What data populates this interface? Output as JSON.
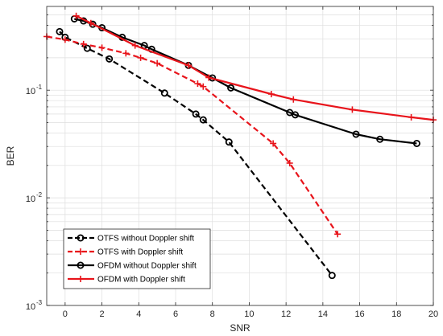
{
  "chart_data": {
    "type": "line",
    "title": "",
    "xlabel": "SNR",
    "ylabel": "BER",
    "xlim": [
      -1,
      20
    ],
    "ylim": [
      0.001,
      0.6
    ],
    "yscale": "log",
    "grid": true,
    "legend_position": "bottom-left",
    "x_ticks": [
      0,
      2,
      4,
      6,
      8,
      10,
      12,
      14,
      16,
      18,
      20
    ],
    "x_tick_labels": [
      "0",
      "2",
      "4",
      "6",
      "8",
      "10",
      "12",
      "14",
      "16",
      "18",
      "20"
    ],
    "y_ticks": [
      0.001,
      0.01,
      0.1
    ],
    "y_tick_base": "10",
    "y_tick_exponents": [
      "-3",
      "-2",
      "-1"
    ],
    "series": [
      {
        "name": "OTFS without Doppler shift",
        "color": "#000000",
        "dash": "dashed",
        "marker": "circle",
        "x": [
          -0.3,
          0.0,
          1.2,
          2.4,
          5.4,
          7.1,
          7.5,
          8.9,
          14.5
        ],
        "y": [
          0.35,
          0.31,
          0.245,
          0.195,
          0.094,
          0.06,
          0.053,
          0.033,
          0.0019
        ]
      },
      {
        "name": "OTFS with Doppler shift",
        "color": "#e8141b",
        "dash": "dashed",
        "marker": "plus",
        "x": [
          -1.0,
          0.0,
          1.0,
          2.0,
          3.3,
          4.1,
          5.0,
          7.2,
          7.5,
          11.3,
          12.2,
          14.8
        ],
        "y": [
          0.315,
          0.295,
          0.268,
          0.248,
          0.22,
          0.2,
          0.178,
          0.115,
          0.108,
          0.032,
          0.021,
          0.0046
        ]
      },
      {
        "name": "OFDM without Doppler shift",
        "color": "#000000",
        "dash": "solid",
        "marker": "circle",
        "x": [
          0.5,
          1.0,
          1.5,
          2.0,
          3.1,
          4.3,
          4.7,
          6.7,
          8.0,
          9.0,
          12.2,
          12.5,
          15.8,
          17.1,
          19.1
        ],
        "y": [
          0.46,
          0.44,
          0.41,
          0.38,
          0.31,
          0.26,
          0.24,
          0.17,
          0.13,
          0.105,
          0.062,
          0.059,
          0.039,
          0.035,
          0.032
        ]
      },
      {
        "name": "OFDM with Doppler shift",
        "color": "#e8141b",
        "dash": "solid",
        "marker": "plus",
        "x": [
          0.6,
          1.4,
          3.8,
          6.7,
          7.8,
          11.2,
          12.4,
          15.6,
          18.8,
          20.0
        ],
        "y": [
          0.49,
          0.42,
          0.26,
          0.17,
          0.131,
          0.092,
          0.082,
          0.066,
          0.056,
          0.053
        ]
      }
    ]
  }
}
